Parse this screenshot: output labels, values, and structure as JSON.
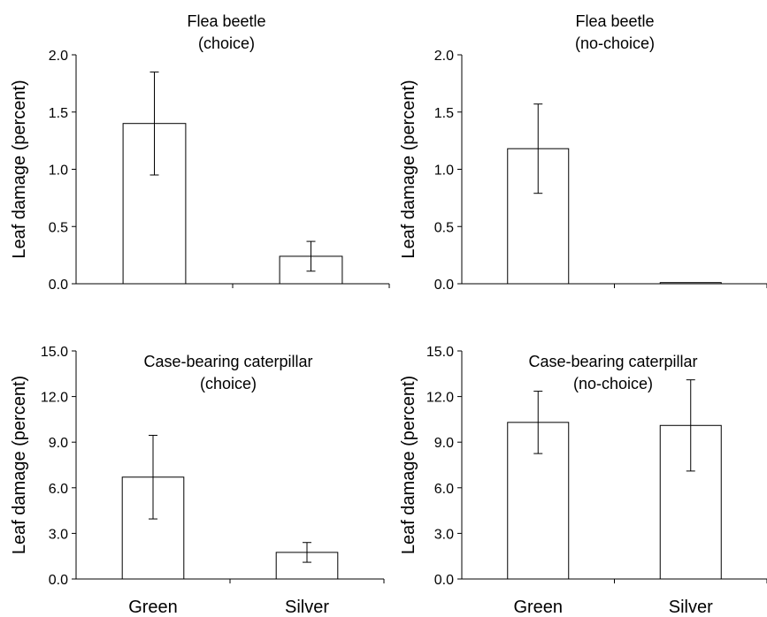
{
  "chart_data": [
    {
      "type": "bar",
      "title": [
        "Flea beetle",
        "(choice)"
      ],
      "ylabel": "Leaf damage (percent)",
      "categories": [
        "Green",
        "Silver"
      ],
      "values": [
        1.4,
        0.24
      ],
      "errors": [
        0.45,
        0.13
      ],
      "ylim": [
        0,
        2.0
      ],
      "yticks": [
        "0.0",
        "0.5",
        "1.0",
        "1.5",
        "2.0"
      ],
      "show_category_labels": false
    },
    {
      "type": "bar",
      "title": [
        "Flea beetle",
        "(no-choice)"
      ],
      "ylabel": "Leaf damage (percent)",
      "categories": [
        "Green",
        "Silver"
      ],
      "values": [
        1.18,
        0.01
      ],
      "errors": [
        0.39,
        0.005
      ],
      "ylim": [
        0,
        2.0
      ],
      "yticks": [
        "0.0",
        "0.5",
        "1.0",
        "1.5",
        "2.0"
      ],
      "show_category_labels": false
    },
    {
      "type": "bar",
      "title": [
        "Case-bearing caterpillar",
        "(choice)"
      ],
      "ylabel": "Leaf damage (percent)",
      "categories": [
        "Green",
        "Silver"
      ],
      "values": [
        6.7,
        1.75
      ],
      "errors": [
        2.75,
        0.65
      ],
      "ylim": [
        0,
        15.0
      ],
      "yticks": [
        "0.0",
        "3.0",
        "6.0",
        "9.0",
        "12.0",
        "15.0"
      ],
      "show_category_labels": true
    },
    {
      "type": "bar",
      "title": [
        "Case-bearing caterpillar",
        "(no-choice)"
      ],
      "ylabel": "Leaf damage (percent)",
      "categories": [
        "Green",
        "Silver"
      ],
      "values": [
        10.3,
        10.1
      ],
      "errors": [
        2.05,
        3.0
      ],
      "ylim": [
        0,
        15.0
      ],
      "yticks": [
        "0.0",
        "3.0",
        "6.0",
        "9.0",
        "12.0",
        "15.0"
      ],
      "show_category_labels": true
    }
  ]
}
